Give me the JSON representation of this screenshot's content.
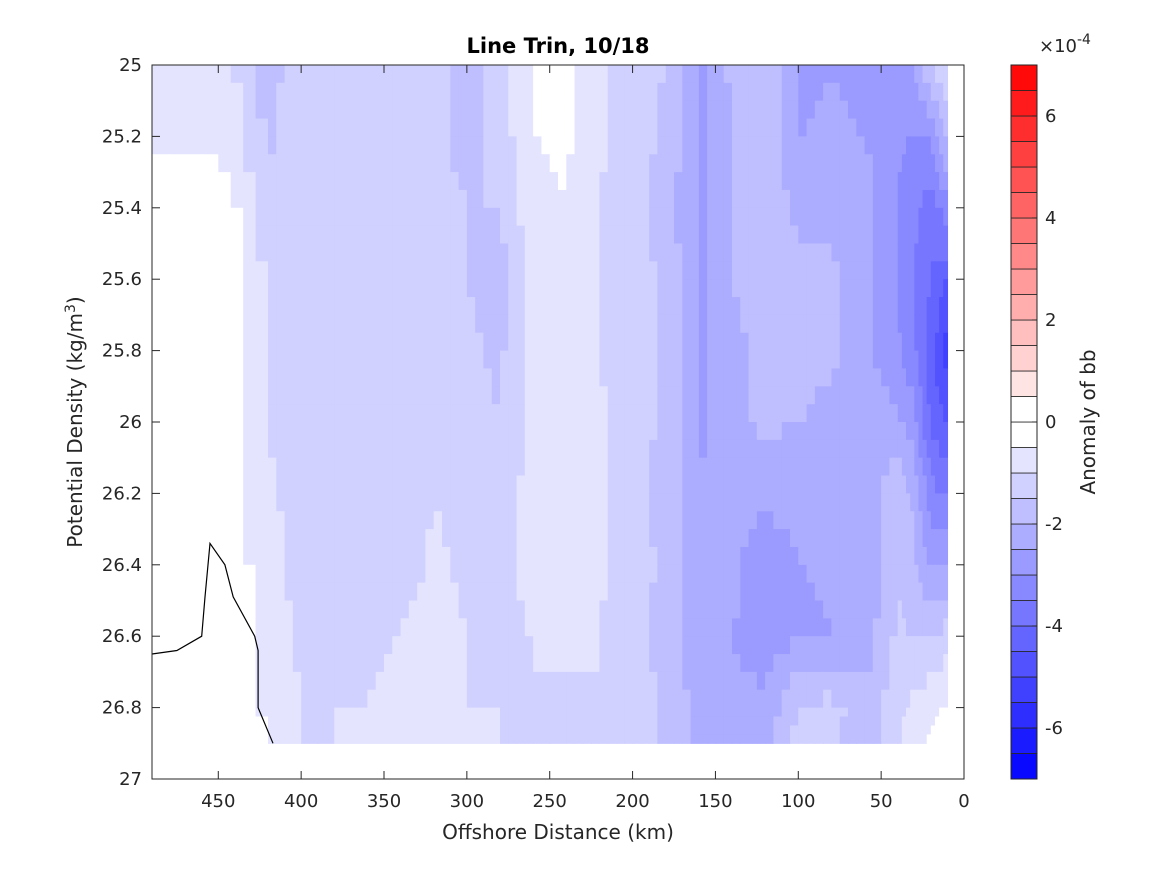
{
  "chart_data": {
    "type": "contour",
    "title": "Line Trin, 10/18",
    "xlabel": "Offshore Distance (km)",
    "ylabel_main": "Potential Density (kg/m",
    "ylabel_sup": "3",
    "ylabel_end": ")",
    "xlim": [
      490,
      0
    ],
    "x_reversed": true,
    "ylim": [
      25,
      27
    ],
    "y_reversed": true,
    "xticks": [
      450,
      400,
      350,
      300,
      250,
      200,
      150,
      100,
      50,
      0
    ],
    "xtick_labels": [
      "450",
      "400",
      "350",
      "300",
      "250",
      "200",
      "150",
      "100",
      "50",
      "0"
    ],
    "yticks": [
      25,
      25.2,
      25.4,
      25.6,
      25.8,
      26,
      26.2,
      26.4,
      26.6,
      26.8,
      27
    ],
    "ytick_labels": [
      "25",
      "25.2",
      "25.4",
      "25.6",
      "25.8",
      "26",
      "26.2",
      "26.4",
      "26.6",
      "26.8",
      "27"
    ],
    "colorbar": {
      "label": "Anomaly of bb",
      "exponent_base": "×10",
      "exponent_power": "-4",
      "clim": [
        -7,
        7
      ],
      "level_step": 0.5,
      "ticks": [
        6,
        4,
        2,
        0,
        -2,
        -4,
        -6
      ],
      "tick_labels": [
        "6",
        "4",
        "2",
        "0",
        "-2",
        "-4",
        "-6"
      ],
      "negative_color": "#0000ff",
      "positive_color": "#ff0000",
      "zero_color": "#ffffff"
    },
    "data_extent": {
      "distance_km": [
        10,
        490
      ],
      "density_bottom": 26.9
    },
    "field": {
      "x": [
        490,
        450,
        420,
        400,
        380,
        360,
        340,
        320,
        300,
        280,
        260,
        240,
        220,
        200,
        180,
        160,
        140,
        120,
        100,
        80,
        60,
        40,
        30,
        20,
        10
      ],
      "y": [
        25.0,
        25.2,
        25.4,
        25.6,
        25.8,
        26.0,
        26.2,
        26.4,
        26.6,
        26.8,
        26.9
      ],
      "v": [
        [
          -0.6,
          -0.6,
          -1.7,
          -1.2,
          -1.3,
          -1.2,
          -1.1,
          -1.0,
          -1.9,
          -1.2,
          -0.4,
          -0.3,
          -0.9,
          -1.3,
          -1.5,
          -2.6,
          -1.9,
          -1.6,
          -2.6,
          -2.5,
          -2.6,
          -2.8,
          -2.4,
          -1.5,
          -1.0
        ],
        [
          -0.6,
          -0.6,
          -1.6,
          -1.2,
          -1.2,
          -1.2,
          -1.1,
          -1.2,
          -1.8,
          -1.3,
          -0.5,
          -0.4,
          -0.9,
          -1.3,
          -1.6,
          -2.6,
          -2.0,
          -1.7,
          -2.5,
          -2.4,
          -2.5,
          -2.9,
          -3.1,
          -3.0,
          -1.9
        ],
        [
          0.0,
          0.0,
          -1.3,
          -1.2,
          -1.1,
          -1.1,
          -1.0,
          -1.2,
          -1.5,
          -1.5,
          -0.6,
          -0.5,
          -1.0,
          -1.3,
          -1.7,
          -2.6,
          -2.0,
          -1.7,
          -2.1,
          -2.1,
          -2.3,
          -3.0,
          -3.4,
          -3.7,
          -3.2
        ],
        [
          0.0,
          0.0,
          -1.1,
          -1.1,
          -1.2,
          -1.1,
          -1.0,
          -1.2,
          -1.5,
          -1.8,
          -0.7,
          -0.6,
          -1.0,
          -1.3,
          -1.6,
          -2.6,
          -2.0,
          -1.8,
          -1.9,
          -1.9,
          -2.2,
          -3.0,
          -3.5,
          -4.0,
          -4.5
        ],
        [
          0.0,
          0.0,
          -1.1,
          -1.3,
          -1.3,
          -1.2,
          -1.0,
          -1.2,
          -1.4,
          -1.6,
          -0.7,
          -0.6,
          -1.0,
          -1.3,
          -1.6,
          -2.6,
          -2.1,
          -1.9,
          -1.9,
          -1.9,
          -2.3,
          -2.9,
          -3.4,
          -4.3,
          -5.3
        ],
        [
          0.0,
          0.0,
          -1.0,
          -1.3,
          -1.5,
          -1.3,
          -1.0,
          -1.1,
          -1.2,
          -1.5,
          -0.8,
          -0.6,
          -0.9,
          -1.3,
          -1.6,
          -2.6,
          -2.1,
          -1.9,
          -2.0,
          -2.1,
          -2.3,
          -2.4,
          -2.8,
          -4.1,
          -4.6
        ],
        [
          0.0,
          0.0,
          -0.9,
          -1.2,
          -1.4,
          -1.4,
          -1.3,
          -1.0,
          -1.2,
          -1.3,
          -0.8,
          -0.6,
          -0.9,
          -1.4,
          -1.6,
          -2.5,
          -2.2,
          -2.4,
          -2.3,
          -2.3,
          -2.4,
          -1.6,
          -2.1,
          -3.3,
          -3.6
        ],
        [
          0.0,
          0.0,
          -0.8,
          -1.2,
          -1.3,
          -1.3,
          -1.3,
          -0.9,
          -1.1,
          -1.2,
          -0.8,
          -0.6,
          -0.9,
          -1.3,
          -1.6,
          -2.4,
          -2.4,
          -2.8,
          -2.5,
          -2.4,
          -2.4,
          -1.5,
          -1.9,
          -2.6,
          -2.5
        ],
        [
          0.0,
          0.0,
          -0.7,
          -1.1,
          -1.2,
          -1.1,
          -1.0,
          -0.7,
          -1.0,
          -1.1,
          -1.0,
          -0.9,
          -1.0,
          -1.3,
          -1.7,
          -2.3,
          -2.5,
          -2.7,
          -2.6,
          -2.5,
          -2.3,
          -1.4,
          -1.6,
          -1.6,
          -1.3
        ],
        [
          0.0,
          0.0,
          -0.6,
          -1.0,
          -1.0,
          -1.0,
          -0.8,
          -0.6,
          -1.0,
          -1.0,
          -1.0,
          -1.1,
          -1.0,
          -1.2,
          -1.6,
          -2.2,
          -2.4,
          -2.4,
          -1.5,
          -1.3,
          -1.8,
          -1.2,
          -0.8,
          -0.6,
          -0.4
        ],
        [
          0.0,
          0.0,
          -0.5,
          -1.0,
          -1.0,
          -0.9,
          -0.7,
          -0.5,
          -0.9,
          -1.0,
          -1.0,
          -1.1,
          -1.0,
          -1.1,
          -1.6,
          -2.2,
          -2.3,
          -2.2,
          -1.3,
          -1.4,
          -1.8,
          -1.1,
          -0.6,
          -0.4,
          -0.2
        ]
      ]
    },
    "line_contour": {
      "x": [
        490,
        475,
        460,
        458,
        455,
        446,
        441,
        428,
        426,
        426,
        417
      ],
      "y": [
        26.65,
        26.64,
        26.6,
        26.49,
        26.34,
        26.4,
        26.49,
        26.6,
        26.64,
        26.8,
        26.9
      ]
    }
  }
}
